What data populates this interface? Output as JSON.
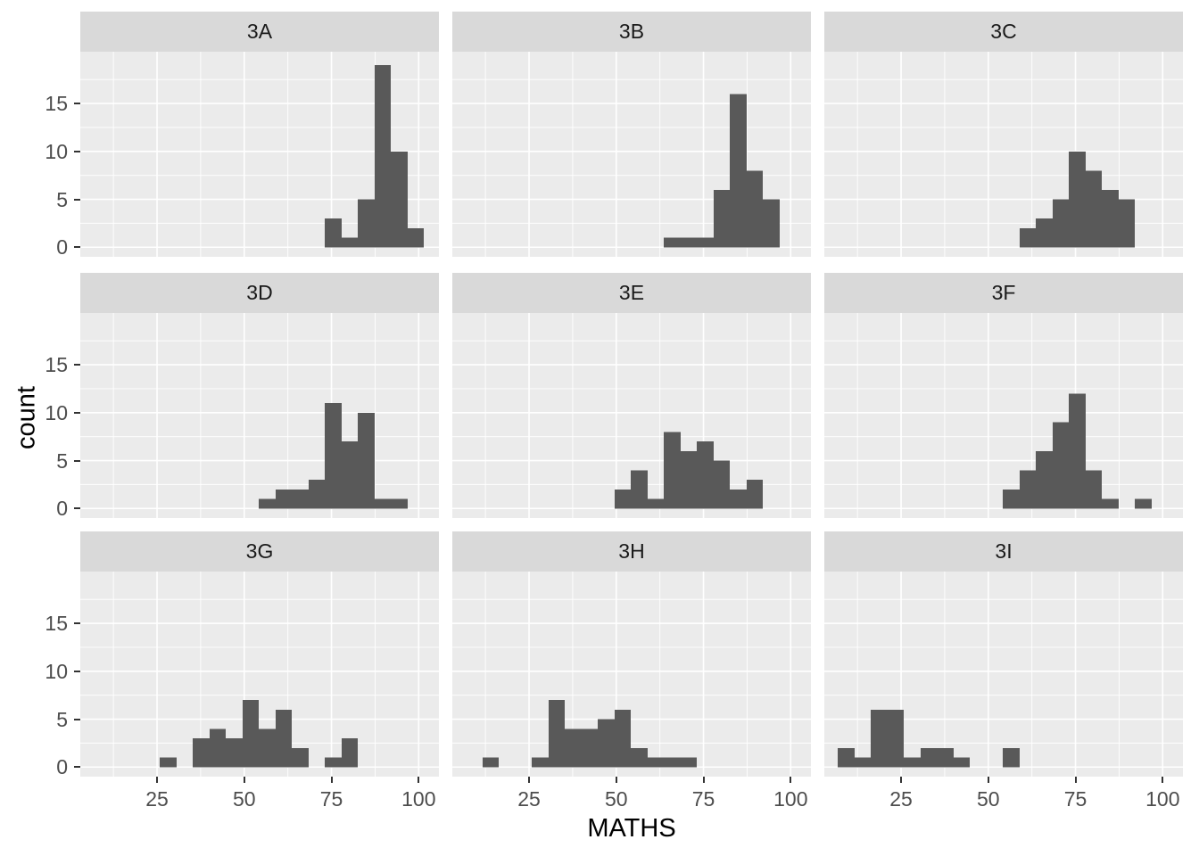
{
  "figure": {
    "x_axis_title": "MATHS",
    "y_axis_title": "count"
  },
  "chart_data": {
    "type": "bar",
    "subtype": "faceted-histogram",
    "facet_labels": [
      "3A",
      "3B",
      "3C",
      "3D",
      "3E",
      "3F",
      "3G",
      "3H",
      "3I"
    ],
    "xlabel": "MATHS",
    "ylabel": "count",
    "x_ticks": [
      25,
      50,
      75,
      100
    ],
    "x_tick_labels": [
      "25",
      "50",
      "75",
      "100"
    ],
    "y_ticks": [
      0,
      5,
      10,
      15
    ],
    "y_tick_labels": [
      "0",
      "5",
      "10",
      "15"
    ],
    "x_minor": [
      12.5,
      37.5,
      62.5,
      87.5
    ],
    "y_minor": [
      2.5,
      7.5,
      12.5,
      17.5
    ],
    "x_domain": [
      3.0,
      105.8
    ],
    "y_domain": [
      -1.0,
      20.4
    ],
    "grid": "on",
    "legend": "none",
    "bin_origin": 6.93,
    "bin_width": 4.73,
    "facets": [
      {
        "label": "3A",
        "start_bin": 14,
        "counts": [
          3,
          1,
          5,
          19,
          10,
          2
        ]
      },
      {
        "label": "3B",
        "start_bin": 12,
        "counts": [
          1,
          1,
          1,
          6,
          16,
          8,
          5
        ]
      },
      {
        "label": "3C",
        "start_bin": 11,
        "counts": [
          2,
          3,
          5,
          10,
          8,
          6,
          5
        ]
      },
      {
        "label": "3D",
        "start_bin": 10,
        "counts": [
          1,
          2,
          2,
          3,
          11,
          7,
          10,
          1,
          1
        ]
      },
      {
        "label": "3E",
        "start_bin": 9,
        "counts": [
          2,
          4,
          1,
          8,
          6,
          7,
          5,
          2,
          3
        ]
      },
      {
        "label": "3F",
        "start_bin": 10,
        "counts": [
          2,
          4,
          6,
          9,
          12,
          4,
          1,
          0,
          1
        ]
      },
      {
        "label": "3G",
        "start_bin": 4,
        "counts": [
          1,
          0,
          3,
          4,
          3,
          7,
          4,
          6,
          2,
          0,
          1,
          3
        ]
      },
      {
        "label": "3H",
        "start_bin": 1,
        "counts": [
          1,
          0,
          0,
          1,
          7,
          4,
          4,
          5,
          6,
          2,
          1,
          1,
          1
        ]
      },
      {
        "label": "3I",
        "start_bin": 0,
        "counts": [
          2,
          1,
          6,
          6,
          1,
          2,
          2,
          1,
          0,
          0,
          2
        ]
      }
    ],
    "colors": {
      "bar": "#595959",
      "panel_bg": "#ebebeb",
      "strip_bg": "#d9d9d9",
      "grid_line": "#ffffff",
      "tick_label": "#4d4d4d",
      "axis_title": "#000000",
      "tick_mark": "#333333",
      "background": "#ffffff"
    }
  }
}
